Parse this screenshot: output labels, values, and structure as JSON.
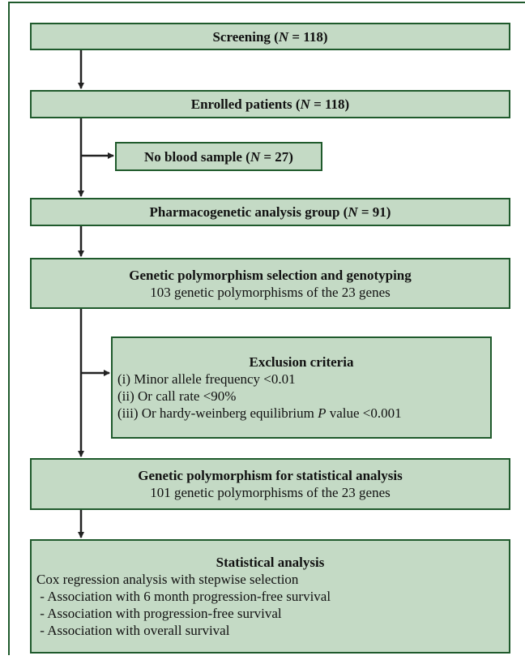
{
  "nodes": [
    {
      "title": [
        "Screening (",
        {
          "text": "N",
          "style": "italic"
        },
        " = 118)"
      ],
      "lines": []
    },
    {
      "title": [
        "Enrolled patients (",
        {
          "text": "N",
          "style": "italic"
        },
        " = 118)"
      ],
      "lines": []
    },
    {
      "title": [
        "No blood sample (",
        {
          "text": "N",
          "style": "italic"
        },
        " = 27)"
      ],
      "lines": []
    },
    {
      "title": [
        "Pharmacogenetic analysis group (",
        {
          "text": "N",
          "style": "italic"
        },
        " = 91)"
      ],
      "lines": []
    },
    {
      "title": [
        "Genetic polymorphism selection and genotyping"
      ],
      "lines": [
        [
          "103 genetic polymorphisms of the 23 genes"
        ]
      ]
    },
    {
      "title": [
        "Exclusion criteria"
      ],
      "lines": [
        [
          "(i) Minor allele frequency <0.01"
        ],
        [
          "(ii) Or call rate <90%"
        ],
        [
          "(iii) Or hardy-weinberg equilibrium ",
          {
            "text": "P",
            "style": "italic"
          },
          " value <0.001"
        ]
      ]
    },
    {
      "title": [
        "Genetic polymorphism for statistical analysis"
      ],
      "lines": [
        [
          "101 genetic polymorphisms of the 23 genes"
        ]
      ]
    },
    {
      "title": [
        "Statistical analysis"
      ],
      "lines": [
        [
          "Cox regression analysis with stepwise selection"
        ],
        [
          " - Association with 6 month progression-free survival"
        ],
        [
          " - Association with progression-free survival"
        ],
        [
          " - Association with overall survival"
        ]
      ]
    }
  ]
}
